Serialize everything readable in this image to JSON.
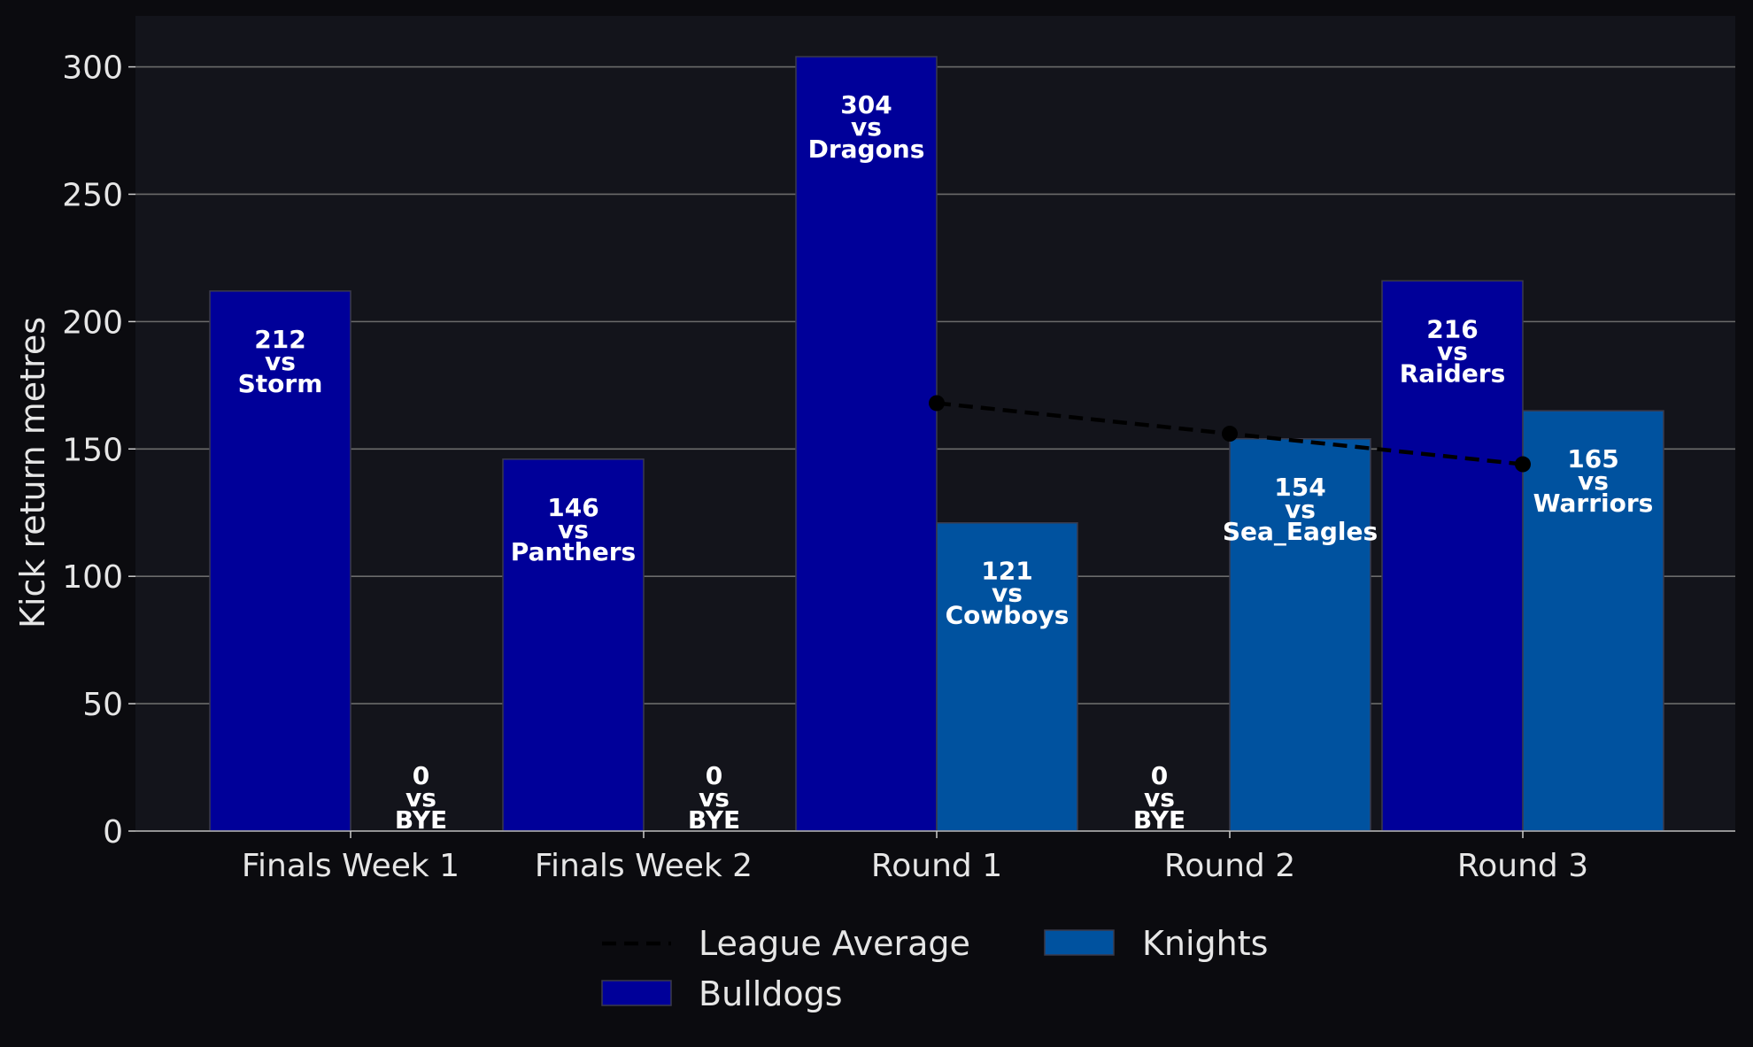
{
  "chart_data": {
    "type": "bar",
    "categories": [
      "Finals Week 1",
      "Finals Week 2",
      "Round 1",
      "Round 2",
      "Round 3"
    ],
    "ylabel": "Kick return metres",
    "xlabel": "",
    "ylim": [
      0,
      320
    ],
    "yticks": [
      0,
      50,
      100,
      150,
      200,
      250,
      300
    ],
    "grid": true,
    "legend_position": "bottom-center",
    "series": [
      {
        "name": "Bulldogs",
        "color": "#000099",
        "values": [
          212,
          146,
          304,
          0,
          216
        ],
        "opponents": [
          "Storm",
          "Panthers",
          "Dragons",
          "BYE",
          "Raiders"
        ]
      },
      {
        "name": "Knights",
        "color": "#00529f",
        "values": [
          0,
          0,
          121,
          154,
          165
        ],
        "opponents": [
          "BYE",
          "BYE",
          "Cowboys",
          "Sea_Eagles",
          "Warriors"
        ]
      }
    ],
    "line": {
      "name": "League Average",
      "style": "dashed",
      "color": "#000000",
      "categories": [
        "Round 1",
        "Round 2",
        "Round 3"
      ],
      "values": [
        168,
        156,
        144
      ]
    },
    "label_connector": "vs"
  }
}
